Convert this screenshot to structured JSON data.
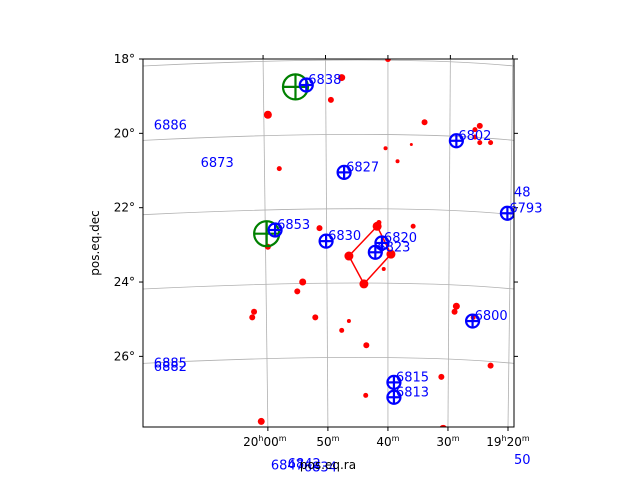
{
  "chart_data": {
    "type": "scatter",
    "title": "",
    "xlabel": "pos.eq.ra",
    "ylabel": "pos.eq.dec",
    "grid": true,
    "x_unit": "minutes of RA after 19h",
    "xlim": [
      80.8,
      19.0
    ],
    "ylim": [
      27.9,
      18.0
    ],
    "x_ticks": [
      {
        "value": 20,
        "label": "19h20m"
      },
      {
        "value": 30,
        "label": "30m"
      },
      {
        "value": 40,
        "label": "40m"
      },
      {
        "value": 50,
        "label": "50m"
      },
      {
        "value": 60,
        "label": "20h00m"
      }
    ],
    "y_ticks": [
      {
        "value": 18,
        "label": "18°"
      },
      {
        "value": 20,
        "label": "20°"
      },
      {
        "value": 22,
        "label": "22°"
      },
      {
        "value": 24,
        "label": "24°"
      },
      {
        "value": 26,
        "label": "26°"
      }
    ],
    "colors": {
      "stars": "#ff0000",
      "catalog": "#0000ff",
      "highlight": "#008000",
      "grid": "#b0b0b0"
    },
    "stars": [
      {
        "x": 40.0,
        "y": 18.0,
        "size": 3
      },
      {
        "x": 47.7,
        "y": 18.5,
        "size": 3.5
      },
      {
        "x": 49.5,
        "y": 19.1,
        "size": 3
      },
      {
        "x": 60.0,
        "y": 19.5,
        "size": 4
      },
      {
        "x": 33.9,
        "y": 19.7,
        "size": 3
      },
      {
        "x": 24.7,
        "y": 19.8,
        "size": 3
      },
      {
        "x": 25.5,
        "y": 19.9,
        "size": 2.5
      },
      {
        "x": 25.5,
        "y": 20.1,
        "size": 2.5
      },
      {
        "x": 22.9,
        "y": 20.25,
        "size": 2.5
      },
      {
        "x": 24.7,
        "y": 20.25,
        "size": 2.5
      },
      {
        "x": 36.1,
        "y": 20.3,
        "size": 1.5
      },
      {
        "x": 40.4,
        "y": 20.4,
        "size": 2
      },
      {
        "x": 38.4,
        "y": 20.75,
        "size": 2
      },
      {
        "x": 58.1,
        "y": 20.95,
        "size": 2.5
      },
      {
        "x": 35.8,
        "y": 22.5,
        "size": 2.5
      },
      {
        "x": 41.5,
        "y": 22.4,
        "size": 2.5
      },
      {
        "x": 51.4,
        "y": 22.55,
        "size": 3
      },
      {
        "x": 40.7,
        "y": 23.65,
        "size": 2
      },
      {
        "x": 60.0,
        "y": 23.05,
        "size": 3
      },
      {
        "x": 54.2,
        "y": 24.0,
        "size": 3.5
      },
      {
        "x": 55.1,
        "y": 24.25,
        "size": 3
      },
      {
        "x": 28.6,
        "y": 24.65,
        "size": 3.5
      },
      {
        "x": 28.9,
        "y": 24.8,
        "size": 3
      },
      {
        "x": 25.8,
        "y": 24.95,
        "size": 2.5
      },
      {
        "x": 52.1,
        "y": 24.95,
        "size": 3
      },
      {
        "x": 62.3,
        "y": 24.8,
        "size": 3
      },
      {
        "x": 62.6,
        "y": 24.95,
        "size": 3
      },
      {
        "x": 46.5,
        "y": 25.05,
        "size": 2
      },
      {
        "x": 47.7,
        "y": 25.3,
        "size": 2.5
      },
      {
        "x": 43.6,
        "y": 25.7,
        "size": 3
      },
      {
        "x": 22.9,
        "y": 26.25,
        "size": 3
      },
      {
        "x": 31.1,
        "y": 26.55,
        "size": 3
      },
      {
        "x": 43.7,
        "y": 27.05,
        "size": 2.5
      },
      {
        "x": 61.1,
        "y": 27.75,
        "size": 3.5
      },
      {
        "x": 30.8,
        "y": 27.95,
        "size": 4
      }
    ],
    "asterism": [
      {
        "x": 39.5,
        "y": 23.25
      },
      {
        "x": 41.8,
        "y": 22.5
      },
      {
        "x": 46.5,
        "y": 23.3
      },
      {
        "x": 44.0,
        "y": 24.05
      }
    ],
    "catalog_objects": [
      {
        "id": "6838",
        "x": 53.6,
        "y": 18.7
      },
      {
        "id": "6802",
        "x": 28.6,
        "y": 20.2
      },
      {
        "id": "6827",
        "x": 47.3,
        "y": 21.05
      },
      {
        "id": "6793",
        "x": 20.1,
        "y": 22.15
      },
      {
        "id": "6820",
        "x": 41.0,
        "y": 22.95
      },
      {
        "id": "6823",
        "x": 42.1,
        "y": 23.2
      },
      {
        "id": "6830",
        "x": 50.3,
        "y": 22.9
      },
      {
        "id": "6853",
        "x": 58.8,
        "y": 22.6
      },
      {
        "id": "6800",
        "x": 25.9,
        "y": 25.05
      },
      {
        "id": "6815",
        "x": 39.0,
        "y": 26.7
      },
      {
        "id": "6813",
        "x": 39.0,
        "y": 27.1
      }
    ],
    "highlighted": [
      {
        "x": 55.4,
        "y": 18.75
      },
      {
        "x": 60.2,
        "y": 22.7
      }
    ],
    "offplot_labels": [
      {
        "id": "6886",
        "x": 79.0,
        "y": 19.9
      },
      {
        "id": "6873",
        "x": 71.2,
        "y": 20.9
      },
      {
        "id": "48",
        "x": 19.0,
        "y": 21.7
      },
      {
        "id": "6885",
        "x": 79.0,
        "y": 26.3
      },
      {
        "id": "6882",
        "x": 79.0,
        "y": 26.4
      },
      {
        "id": "50",
        "x": 19.0,
        "y": 28.9
      },
      {
        "id": "6842",
        "x": 56.7,
        "y": 29.0
      },
      {
        "id": "6834",
        "x": 54.0,
        "y": 29.1
      },
      {
        "id": "6847",
        "x": 59.5,
        "y": 29.05
      }
    ]
  }
}
